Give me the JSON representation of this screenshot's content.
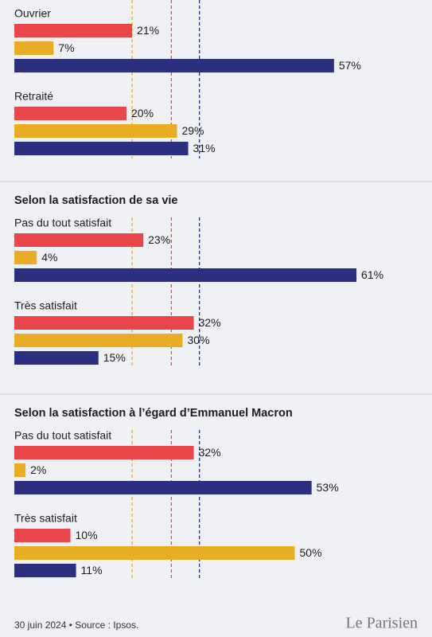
{
  "chart_data": [
    {
      "type": "bar",
      "categories": [
        "Ouvrier",
        "Retraité"
      ],
      "xlim": [
        0,
        70
      ],
      "series": [
        {
          "color": "#e8464a",
          "values": [
            21,
            20
          ],
          "value_labels": [
            "21%",
            "20%"
          ],
          "average": 28
        },
        {
          "color": "#e9ad25",
          "values": [
            7,
            29
          ],
          "value_labels": [
            "7%",
            "29%"
          ],
          "average": 21
        },
        {
          "color": "#2b2f7e",
          "values": [
            57,
            31
          ],
          "value_labels": [
            "57%",
            "31%"
          ],
          "average": 33
        }
      ]
    },
    {
      "type": "bar",
      "title": "Selon la satisfaction de sa vie",
      "categories": [
        "Pas du tout satisfait",
        "Très satisfait"
      ],
      "xlim": [
        0,
        70
      ],
      "series": [
        {
          "color": "#e8464a",
          "values": [
            23,
            32
          ],
          "value_labels": [
            "23%",
            "32%"
          ],
          "average": 28
        },
        {
          "color": "#e9ad25",
          "values": [
            4,
            30
          ],
          "value_labels": [
            "4%",
            "30%"
          ],
          "average": 21
        },
        {
          "color": "#2b2f7e",
          "values": [
            61,
            15
          ],
          "value_labels": [
            "61%",
            "15%"
          ],
          "average": 33
        }
      ]
    },
    {
      "type": "bar",
      "title": "Selon la satisfaction à l’égard d’Emmanuel Macron",
      "categories": [
        "Pas du tout satisfait",
        "Très satisfait"
      ],
      "xlim": [
        0,
        70
      ],
      "series": [
        {
          "color": "#e8464a",
          "values": [
            32,
            10
          ],
          "value_labels": [
            "32%",
            "10%"
          ],
          "average": 28
        },
        {
          "color": "#e9ad25",
          "values": [
            2,
            50
          ],
          "value_labels": [
            "2%",
            "50%"
          ],
          "average": 21
        },
        {
          "color": "#2b2f7e",
          "values": [
            53,
            11
          ],
          "value_labels": [
            "53%",
            "11%"
          ],
          "average": 33
        }
      ]
    }
  ],
  "footer": {
    "note": "30 juin 2024 • Source : Ipsos.",
    "brand": "Le Parisien"
  }
}
